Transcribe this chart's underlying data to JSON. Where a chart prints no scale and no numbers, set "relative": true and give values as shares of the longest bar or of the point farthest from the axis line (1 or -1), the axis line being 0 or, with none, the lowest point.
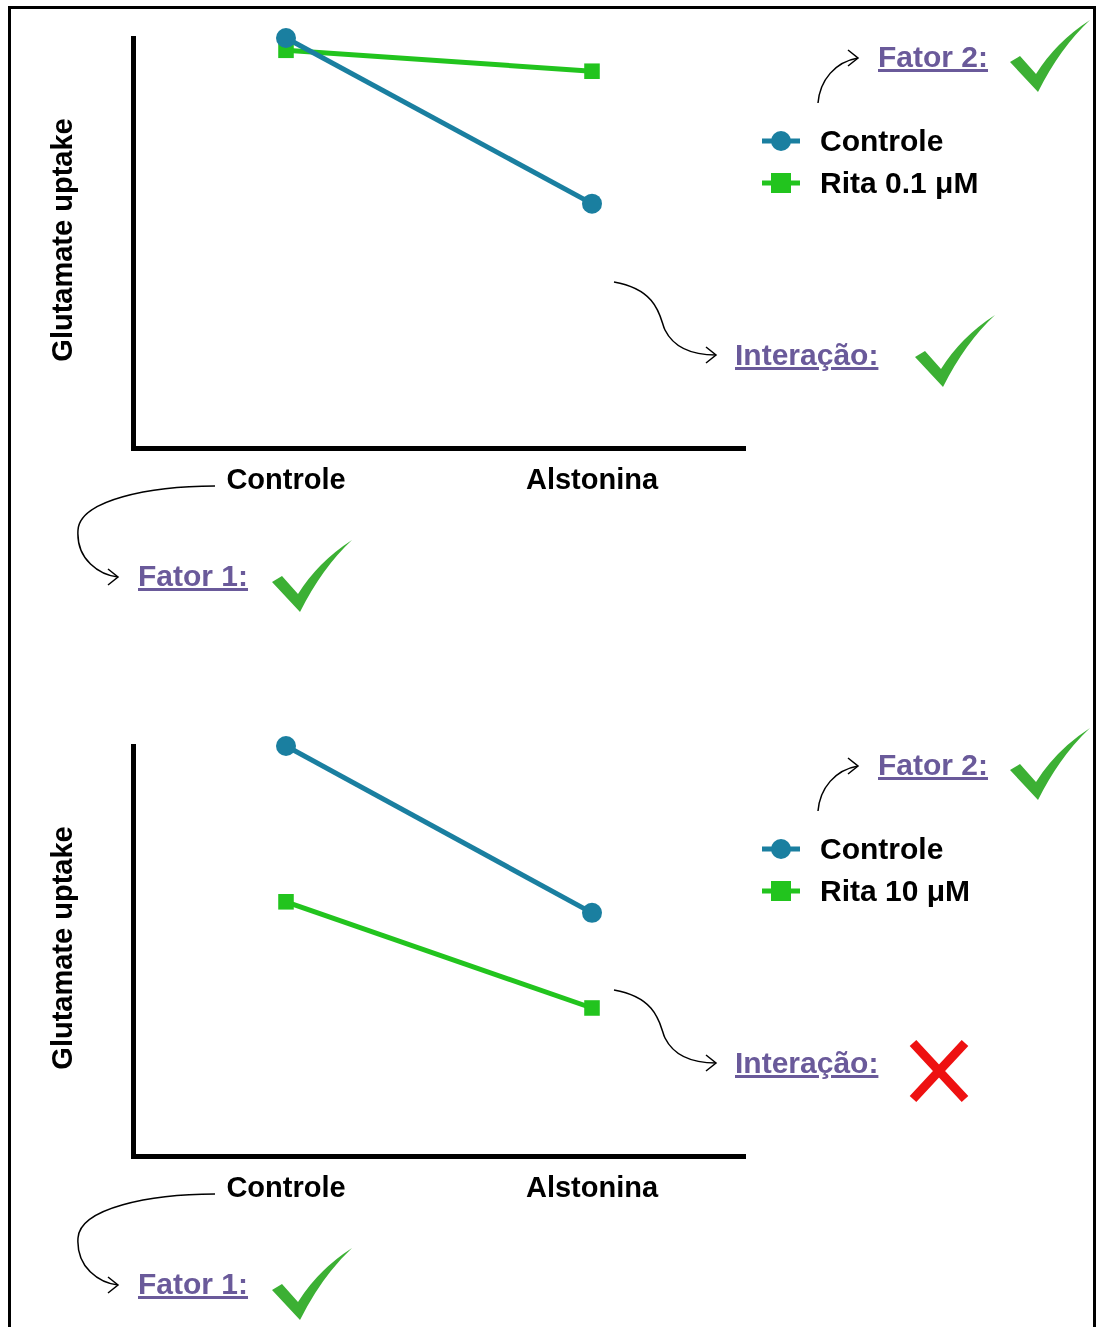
{
  "chart_data": [
    {
      "type": "line",
      "ylabel": "Glutamate uptake",
      "categories": [
        "Controle",
        "Alstonina"
      ],
      "relative": true,
      "legend": "right",
      "grid": false,
      "tick_labels": "x",
      "annotations": [
        "Fator 2:",
        "Interação:",
        "Fator 1:"
      ],
      "series": [
        {
          "name": "Controle",
          "color": "#1a7fa0",
          "marker": "circle",
          "values": [
            1,
            0.596
          ]
        },
        {
          "name": "Rita 0.1 μM",
          "color": "#22c41e",
          "marker": "square",
          "values": [
            0.97,
            0.919
          ]
        }
      ]
    },
    {
      "type": "line",
      "ylabel": "Glutamate uptake",
      "categories": [
        "Controle",
        "Alstonina"
      ],
      "relative": true,
      "legend": "right",
      "grid": false,
      "tick_labels": "x",
      "annotations": [
        "Fator 2:",
        "Interação:",
        "Fator 1:"
      ],
      "series": [
        {
          "name": "Controle",
          "color": "#1a7fa0",
          "marker": "circle",
          "values": [
            1,
            0.593
          ]
        },
        {
          "name": "Rita 10 μM",
          "color": "#22c41e",
          "marker": "square",
          "values": [
            0.62,
            0.361
          ]
        }
      ]
    }
  ]
}
